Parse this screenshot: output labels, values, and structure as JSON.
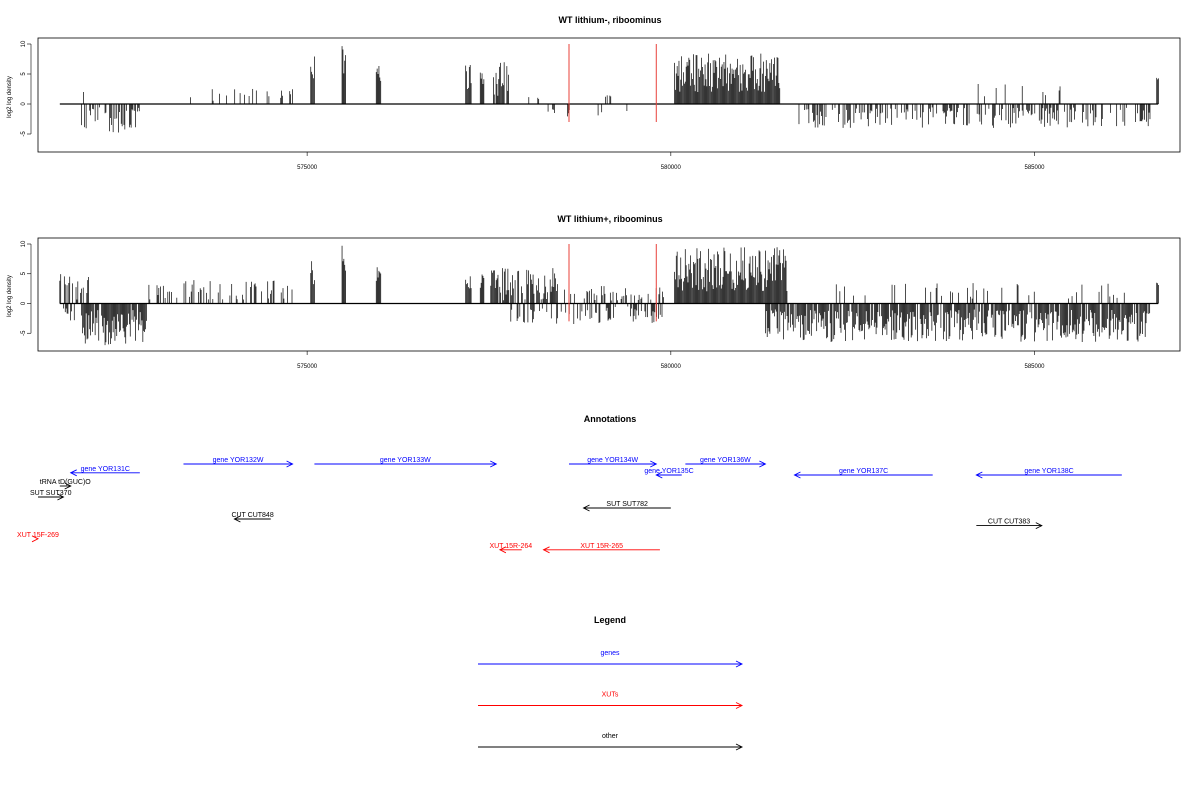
{
  "chart_data": [
    {
      "type": "bar",
      "title": "WT lithium-, riboominus",
      "ylabel": "log2 log density",
      "xlim": [
        571300,
        587000
      ],
      "ylim": [
        -8,
        11
      ],
      "yticks": [
        -5,
        0,
        5,
        10
      ],
      "xticks": [
        575000,
        580000,
        585000
      ],
      "markers_x": [
        578600,
        579800
      ],
      "marker_color": "#e8413a",
      "bar_color": "#000000",
      "baseline": [
        571600,
        586700
      ],
      "positive_blocks": [
        {
          "start": 571850,
          "end": 571950,
          "min": 1,
          "max": 3,
          "density": 0.15
        },
        {
          "start": 573200,
          "end": 574500,
          "min": 0.5,
          "max": 3.5,
          "density": 0.12
        },
        {
          "start": 574600,
          "end": 574800,
          "min": 1,
          "max": 2.5,
          "density": 0.2
        },
        {
          "start": 575050,
          "end": 575110,
          "min": 3,
          "max": 8,
          "density": 1
        },
        {
          "start": 575480,
          "end": 575530,
          "min": 3,
          "max": 10,
          "density": 1
        },
        {
          "start": 575950,
          "end": 576020,
          "min": 3,
          "max": 7,
          "density": 1
        },
        {
          "start": 577180,
          "end": 577260,
          "min": 2,
          "max": 6.5,
          "density": 1
        },
        {
          "start": 577380,
          "end": 577440,
          "min": 2,
          "max": 6.5,
          "density": 1
        },
        {
          "start": 577560,
          "end": 577780,
          "min": 1,
          "max": 7,
          "density": 0.9
        },
        {
          "start": 577800,
          "end": 578250,
          "min": 0.5,
          "max": 1.5,
          "density": 0.08
        },
        {
          "start": 579100,
          "end": 579200,
          "min": 1,
          "max": 2,
          "density": 0.2
        },
        {
          "start": 580050,
          "end": 581500,
          "min": 2,
          "max": 8.5,
          "density": 1
        },
        {
          "start": 584200,
          "end": 585400,
          "min": 0.5,
          "max": 3.5,
          "density": 0.08
        },
        {
          "start": 586680,
          "end": 586710,
          "min": 4,
          "max": 4.5,
          "density": 1
        }
      ],
      "negative_blocks": [
        {
          "start": 571900,
          "end": 572700,
          "min": 0.5,
          "max": 5,
          "density": 0.55
        },
        {
          "start": 578300,
          "end": 578400,
          "min": 0.5,
          "max": 1.5,
          "density": 0.2
        },
        {
          "start": 578580,
          "end": 578620,
          "min": 1,
          "max": 2.5,
          "density": 0.5
        },
        {
          "start": 579000,
          "end": 579400,
          "min": 0.5,
          "max": 2.5,
          "density": 0.2
        },
        {
          "start": 581700,
          "end": 586600,
          "min": 0.5,
          "max": 4,
          "density": 0.45
        }
      ]
    },
    {
      "type": "bar",
      "title": "WT lithium+, riboominus",
      "ylabel": "log2 log density",
      "xlim": [
        571300,
        587000
      ],
      "ylim": [
        -8,
        11
      ],
      "yticks": [
        -5,
        0,
        5,
        10
      ],
      "xticks": [
        575000,
        580000,
        585000
      ],
      "markers_x": [
        578600,
        579800
      ],
      "marker_color": "#e8413a",
      "bar_color": "#000000",
      "baseline": [
        571600,
        586700
      ],
      "positive_blocks": [
        {
          "start": 571600,
          "end": 572000,
          "min": 0.5,
          "max": 5,
          "density": 0.45
        },
        {
          "start": 572800,
          "end": 574800,
          "min": 0.5,
          "max": 4,
          "density": 0.35
        },
        {
          "start": 575050,
          "end": 575110,
          "min": 3,
          "max": 7.5,
          "density": 1
        },
        {
          "start": 575480,
          "end": 575530,
          "min": 3,
          "max": 10,
          "density": 1
        },
        {
          "start": 575950,
          "end": 576020,
          "min": 3,
          "max": 6.5,
          "density": 1
        },
        {
          "start": 577180,
          "end": 577260,
          "min": 2,
          "max": 6,
          "density": 1
        },
        {
          "start": 577380,
          "end": 577440,
          "min": 2,
          "max": 6.5,
          "density": 1
        },
        {
          "start": 577500,
          "end": 578450,
          "min": 0.5,
          "max": 6,
          "density": 0.75
        },
        {
          "start": 578500,
          "end": 579950,
          "min": 0.5,
          "max": 3,
          "density": 0.35
        },
        {
          "start": 580050,
          "end": 581600,
          "min": 2,
          "max": 9.5,
          "density": 1
        },
        {
          "start": 582200,
          "end": 586300,
          "min": 0.5,
          "max": 3.5,
          "density": 0.12
        },
        {
          "start": 586680,
          "end": 586710,
          "min": 3,
          "max": 3.5,
          "density": 1
        }
      ],
      "negative_blocks": [
        {
          "start": 571650,
          "end": 571800,
          "min": 0.5,
          "max": 3,
          "density": 0.5
        },
        {
          "start": 571900,
          "end": 572800,
          "min": 1,
          "max": 7,
          "density": 0.9
        },
        {
          "start": 577800,
          "end": 579900,
          "min": 0.5,
          "max": 3.5,
          "density": 0.4
        },
        {
          "start": 581300,
          "end": 586600,
          "min": 1,
          "max": 6.5,
          "density": 0.85
        }
      ]
    }
  ],
  "annotations": {
    "title": "Annotations",
    "features": [
      {
        "label": "gene YOR131C",
        "color": "#0000ff",
        "start": 571750,
        "end": 572700,
        "dir": "left",
        "row": 1.8
      },
      {
        "label": "gene YOR132W",
        "color": "#0000ff",
        "start": 573300,
        "end": 574800,
        "dir": "right",
        "row": 1
      },
      {
        "label": "gene YOR133W",
        "color": "#0000ff",
        "start": 575100,
        "end": 577600,
        "dir": "right",
        "row": 1
      },
      {
        "label": "gene YOR134W",
        "color": "#0000ff",
        "start": 578600,
        "end": 579800,
        "dir": "right",
        "row": 1
      },
      {
        "label": "gene YOR135C",
        "color": "#0000ff",
        "start": 579800,
        "end": 580150,
        "dir": "left",
        "row": 2
      },
      {
        "label": "gene YOR136W",
        "color": "#0000ff",
        "start": 580200,
        "end": 581300,
        "dir": "right",
        "row": 1
      },
      {
        "label": "gene YOR137C",
        "color": "#0000ff",
        "start": 581700,
        "end": 583600,
        "dir": "left",
        "row": 2
      },
      {
        "label": "gene YOR138C",
        "color": "#0000ff",
        "start": 584200,
        "end": 586200,
        "dir": "left",
        "row": 2
      },
      {
        "label": "tRNA tD(GUC)O",
        "color": "#000000",
        "start": 571600,
        "end": 571750,
        "dir": "right",
        "row": 3
      },
      {
        "label": "SUT SUT370",
        "color": "#000000",
        "start": 571000,
        "end": 571650,
        "dir": "right",
        "row": 4
      },
      {
        "label": "SUT SUT782",
        "color": "#000000",
        "start": 578800,
        "end": 580000,
        "dir": "left",
        "row": 5
      },
      {
        "label": "CUT CUT848",
        "color": "#000000",
        "start": 574000,
        "end": 574500,
        "dir": "left",
        "row": 6
      },
      {
        "label": "CUT CUT383",
        "color": "#000000",
        "start": 584200,
        "end": 585100,
        "dir": "right",
        "row": 6.6
      },
      {
        "label": "XUT 15F-269",
        "color": "#ff0000",
        "start": 571000,
        "end": 571150,
        "dir": "right",
        "row": 7.8
      },
      {
        "label": "XUT 15R-264",
        "color": "#ff0000",
        "start": 577650,
        "end": 577950,
        "dir": "left",
        "row": 8.8
      },
      {
        "label": "XUT 15R-265",
        "color": "#ff0000",
        "start": 578250,
        "end": 579850,
        "dir": "left",
        "row": 8.8
      }
    ]
  },
  "legend": {
    "title": "Legend",
    "entries": [
      {
        "label": "genes",
        "color": "#0000ff"
      },
      {
        "label": "XUTs",
        "color": "#ff0000"
      },
      {
        "label": "other",
        "color": "#000000"
      }
    ]
  }
}
